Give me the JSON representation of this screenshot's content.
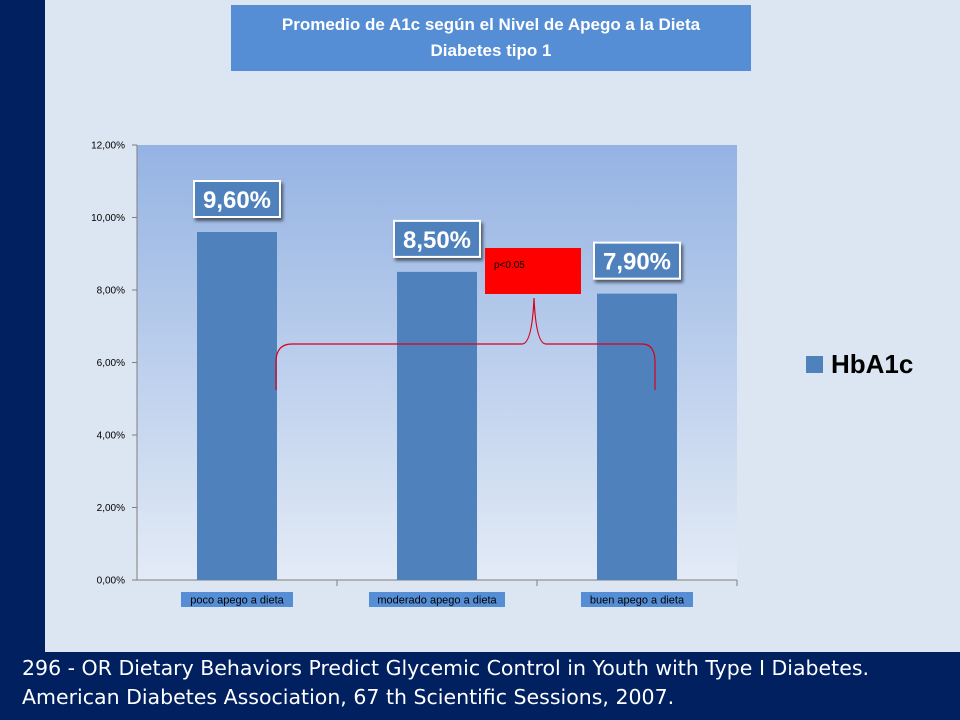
{
  "colors": {
    "slide_bg": "#002060",
    "panel_bg": "#dce6f2",
    "title_bg": "#558ed5",
    "bar": "#4f81bd",
    "plot_top": "#95b3e3",
    "plot_bottom": "#e3ebf6",
    "annotation_box": "#ff0000",
    "bracket": "#d9001b"
  },
  "title_lines": [
    "Promedio de A1c según el Nivel de Apego a la Dieta",
    "Diabetes tipo 1"
  ],
  "footer_lines": [
    "296 - OR Dietary Behaviors Predict Glycemic Control in Youth with Type I Diabetes.",
    "American Diabetes Association, 67 th Scientific Sessions, 2007."
  ],
  "annotation": {
    "text": "p<0.05",
    "color_name": "red"
  },
  "chart_data": {
    "type": "bar",
    "title": "Promedio de A1c según el Nivel de Apego a la Dieta Diabetes tipo 1",
    "categories": [
      "poco apego a dieta",
      "moderado apego a dieta",
      "buen apego a dieta"
    ],
    "series": [
      {
        "name": "HbA1c",
        "values": [
          9.6,
          8.5,
          7.9
        ],
        "data_labels": [
          "9,60%",
          "8,50%",
          "7,90%"
        ]
      }
    ],
    "ylim": [
      0,
      12
    ],
    "yticks": [
      0,
      2,
      4,
      6,
      8,
      10,
      12
    ],
    "ytick_labels": [
      "0,00%",
      "2,00%",
      "4,00%",
      "6,00%",
      "8,00%",
      "10,00%",
      "12,00%"
    ],
    "xlabel": "",
    "ylabel": "",
    "grid": false,
    "legend_position": "right"
  }
}
